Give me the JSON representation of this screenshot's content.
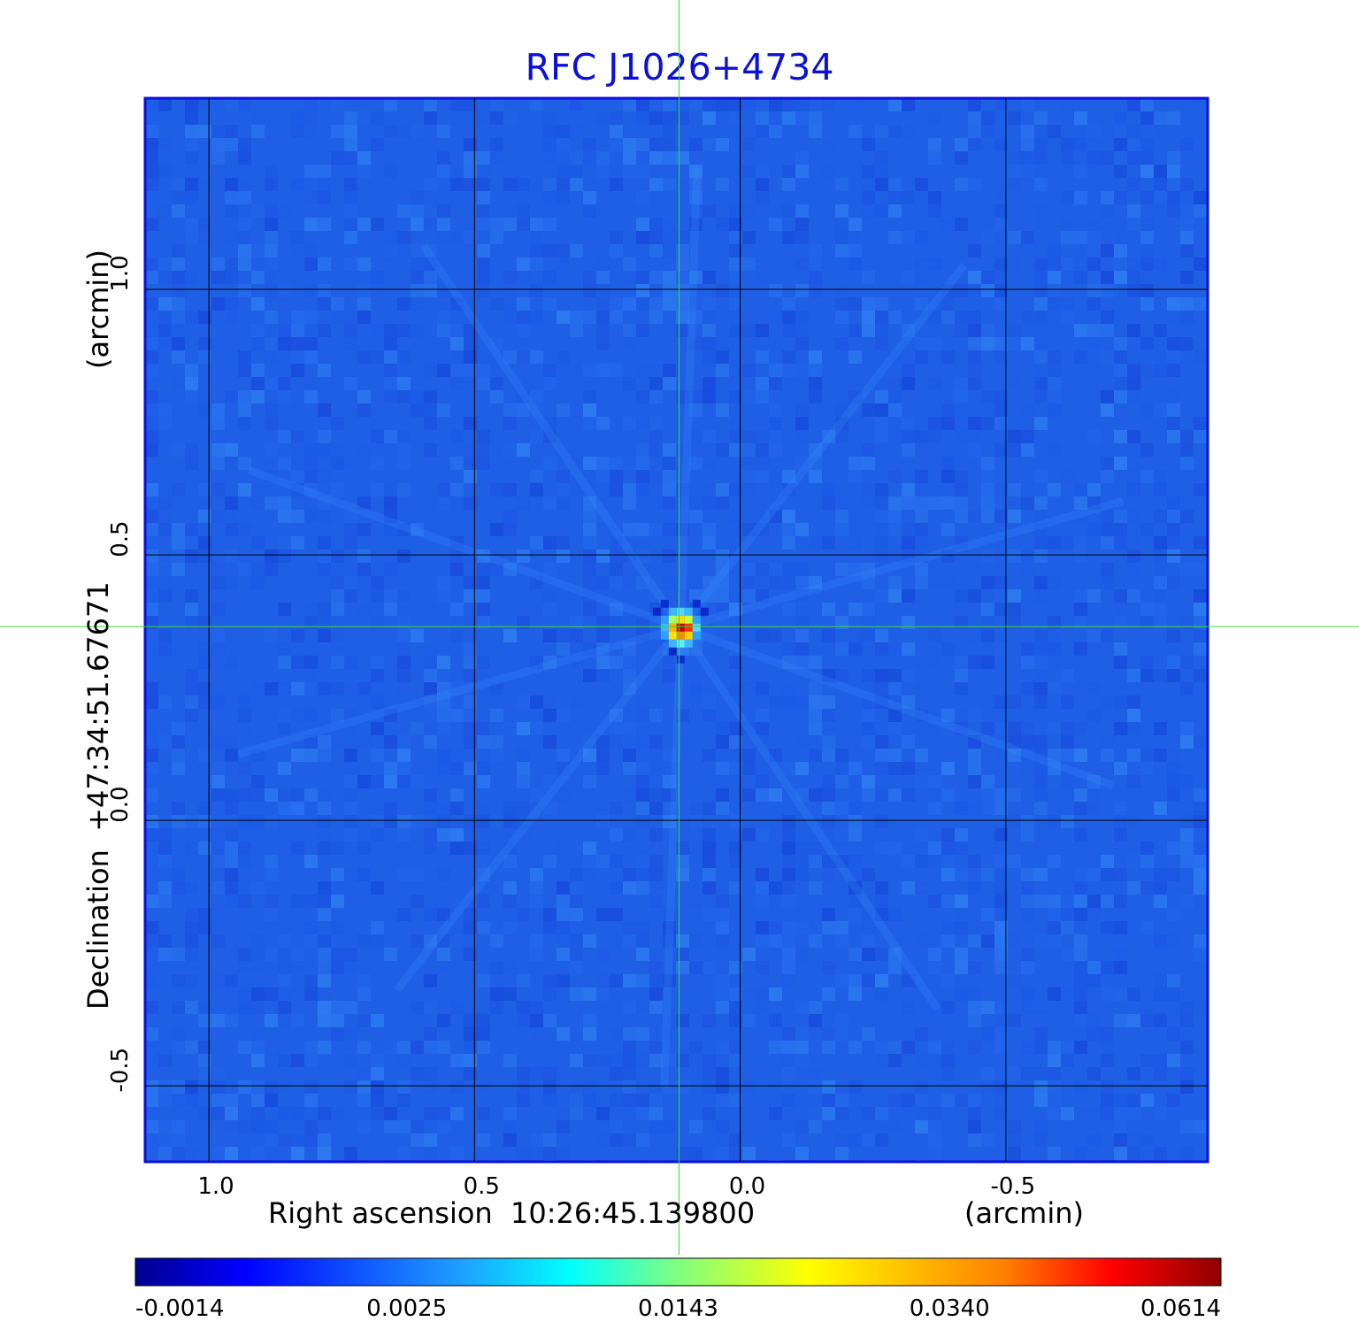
{
  "chart_data": {
    "type": "heatmap",
    "title": "RFC J1026+4734",
    "xlabel": "Right ascension  10:26:45.139800",
    "xlabel_unit": "(arcmin)",
    "ylabel": "Declination  +47:34:51.67671",
    "ylabel_unit": "(arcmin)",
    "x_ticks": [
      1.0,
      0.5,
      0.0,
      -0.5
    ],
    "x_tick_labels": [
      "1.0",
      "0.5",
      "0.0",
      "-0.5"
    ],
    "y_ticks": [
      1.0,
      0.5,
      0.0,
      -0.5
    ],
    "y_tick_labels": [
      "1.0",
      "0.5",
      "0.0",
      "-0.5"
    ],
    "xlim": [
      1.12,
      -0.88
    ],
    "ylim": [
      -0.643,
      1.36
    ],
    "grid": true,
    "crosshair": {
      "x": 0.115,
      "y": 0.365
    },
    "peak": {
      "x": 0.112,
      "y": 0.363,
      "value": 0.0614
    },
    "colorbar": {
      "colormap": "jet",
      "tick_labels": [
        "-0.0014",
        "0.0025",
        "0.0143",
        "0.0340",
        "0.0614"
      ]
    },
    "colors": {
      "title": "#0a10d8",
      "background_field": "#1f5fe6",
      "frame": "#0a10d8",
      "crosshair": "#33dd33",
      "grid": "#000000"
    }
  }
}
